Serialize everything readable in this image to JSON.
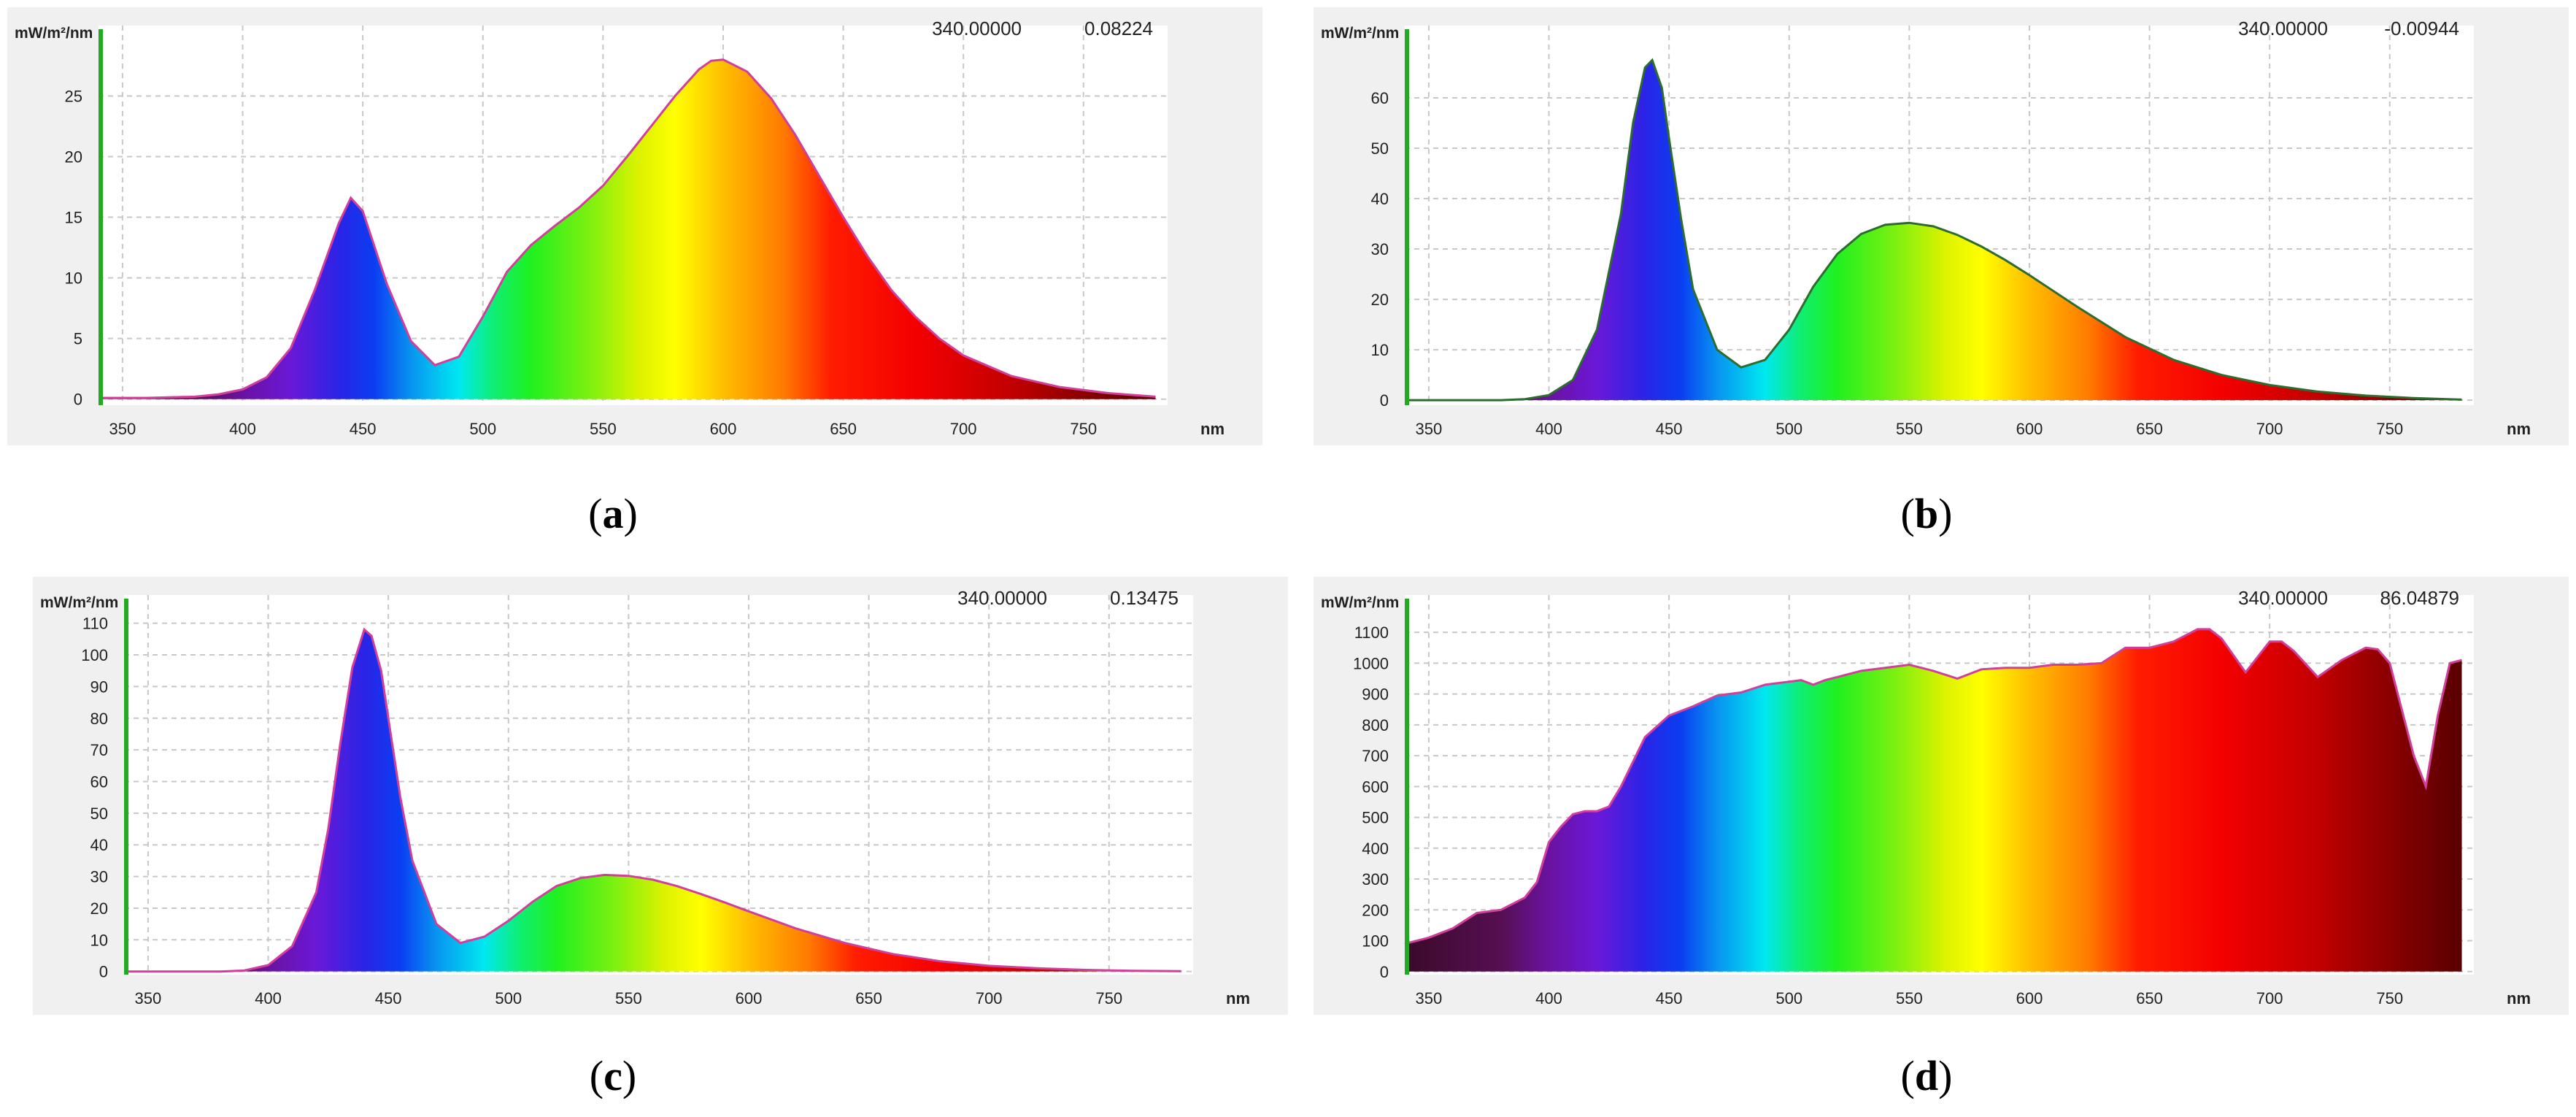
{
  "chart_data": [
    {
      "type": "area",
      "caption": "a",
      "ylabel": "mW/m²/nm",
      "xlabel": "nm",
      "cursor": {
        "wavelength": "340.00000",
        "value": "0.08224"
      },
      "xlim": [
        340,
        785
      ],
      "ylim": [
        -0.5,
        29
      ],
      "xticks": [
        350,
        400,
        450,
        500,
        550,
        600,
        650,
        700,
        750
      ],
      "yticks": [
        0,
        5,
        10,
        15,
        20,
        25
      ],
      "x": [
        340,
        360,
        380,
        390,
        400,
        410,
        420,
        430,
        440,
        445,
        450,
        460,
        470,
        480,
        490,
        500,
        510,
        520,
        530,
        540,
        550,
        560,
        570,
        580,
        590,
        595,
        600,
        610,
        620,
        630,
        640,
        650,
        660,
        670,
        680,
        690,
        700,
        720,
        740,
        760,
        780
      ],
      "y": [
        0.1,
        0.1,
        0.2,
        0.4,
        0.8,
        1.8,
        4.2,
        9.0,
        14.5,
        16.6,
        15.5,
        9.5,
        4.8,
        2.8,
        3.5,
        6.8,
        10.5,
        12.7,
        14.3,
        15.8,
        17.6,
        20.0,
        22.5,
        25.0,
        27.2,
        27.9,
        28.0,
        27.0,
        24.8,
        21.8,
        18.4,
        15.0,
        11.8,
        9.0,
        6.8,
        5.0,
        3.6,
        1.9,
        1.0,
        0.5,
        0.2
      ]
    },
    {
      "type": "area",
      "caption": "b",
      "ylabel": "mW/m²/nm",
      "xlabel": "nm",
      "cursor": {
        "wavelength": "340.00000",
        "value": "-0.00944"
      },
      "xlim": [
        340,
        785
      ],
      "ylim": [
        -1,
        70
      ],
      "xticks": [
        350,
        400,
        450,
        500,
        550,
        600,
        650,
        700,
        750
      ],
      "yticks": [
        0,
        10,
        20,
        30,
        40,
        50,
        60
      ],
      "x": [
        340,
        380,
        390,
        400,
        410,
        420,
        430,
        435,
        440,
        443,
        447,
        450,
        455,
        460,
        470,
        480,
        490,
        500,
        510,
        520,
        530,
        540,
        550,
        560,
        570,
        580,
        590,
        600,
        620,
        640,
        660,
        680,
        700,
        720,
        740,
        760,
        780
      ],
      "y": [
        0,
        0,
        0.2,
        1.0,
        4.0,
        14.0,
        37.0,
        55.0,
        66.0,
        67.5,
        62.0,
        52.0,
        36.0,
        22.0,
        10.0,
        6.5,
        8.0,
        14.0,
        22.5,
        29.0,
        33.0,
        34.8,
        35.2,
        34.5,
        32.8,
        30.5,
        27.8,
        24.8,
        18.5,
        12.5,
        8.0,
        5.0,
        3.0,
        1.7,
        0.9,
        0.4,
        0.1
      ]
    },
    {
      "type": "area",
      "caption": "c",
      "ylabel": "mW/m²/nm",
      "xlabel": "nm",
      "cursor": {
        "wavelength": "340.00000",
        "value": "0.13475"
      },
      "xlim": [
        340,
        785
      ],
      "ylim": [
        -1,
        112
      ],
      "xticks": [
        350,
        400,
        450,
        500,
        550,
        600,
        650,
        700,
        750
      ],
      "yticks": [
        0,
        10,
        20,
        30,
        40,
        50,
        60,
        70,
        80,
        90,
        100,
        110
      ],
      "x": [
        340,
        380,
        390,
        400,
        410,
        420,
        425,
        430,
        435,
        440,
        443,
        447,
        450,
        455,
        460,
        470,
        480,
        490,
        500,
        510,
        520,
        530,
        540,
        550,
        560,
        570,
        580,
        590,
        600,
        620,
        640,
        660,
        680,
        700,
        720,
        740,
        760,
        780
      ],
      "y": [
        0,
        0,
        0.3,
        2.0,
        8.0,
        25.0,
        45.0,
        72.0,
        96.0,
        108.0,
        106.0,
        95.0,
        80.0,
        55.0,
        35.0,
        15.0,
        9.0,
        11.0,
        16.0,
        22.0,
        27.0,
        29.5,
        30.5,
        30.2,
        29.0,
        27.0,
        24.5,
        21.8,
        19.0,
        13.5,
        9.0,
        5.5,
        3.2,
        1.8,
        1.0,
        0.5,
        0.2,
        0.1
      ]
    },
    {
      "type": "area",
      "caption": "d",
      "ylabel": "mW/m²/nm",
      "xlabel": "nm",
      "cursor": {
        "wavelength": "340.00000",
        "value": "86.04879"
      },
      "xlim": [
        340,
        785
      ],
      "ylim": [
        -10,
        1150
      ],
      "xticks": [
        350,
        400,
        450,
        500,
        550,
        600,
        650,
        700,
        750
      ],
      "yticks": [
        0,
        100,
        200,
        300,
        400,
        500,
        600,
        700,
        800,
        900,
        1000,
        1100
      ],
      "x": [
        340,
        350,
        360,
        370,
        380,
        390,
        395,
        400,
        405,
        410,
        415,
        420,
        425,
        430,
        440,
        450,
        460,
        470,
        480,
        490,
        500,
        505,
        510,
        515,
        520,
        530,
        540,
        550,
        560,
        570,
        580,
        590,
        600,
        610,
        620,
        630,
        640,
        650,
        660,
        670,
        675,
        680,
        690,
        700,
        705,
        710,
        720,
        730,
        740,
        745,
        750,
        755,
        760,
        765,
        770,
        775,
        780
      ],
      "y": [
        90,
        110,
        140,
        190,
        200,
        240,
        290,
        420,
        470,
        510,
        520,
        520,
        535,
        600,
        760,
        830,
        860,
        895,
        905,
        930,
        940,
        945,
        930,
        945,
        955,
        975,
        985,
        995,
        975,
        950,
        980,
        985,
        985,
        995,
        995,
        1000,
        1050,
        1050,
        1070,
        1110,
        1110,
        1080,
        970,
        1070,
        1070,
        1040,
        955,
        1010,
        1050,
        1045,
        1000,
        850,
        700,
        600,
        830,
        1000,
        1010
      ]
    }
  ]
}
